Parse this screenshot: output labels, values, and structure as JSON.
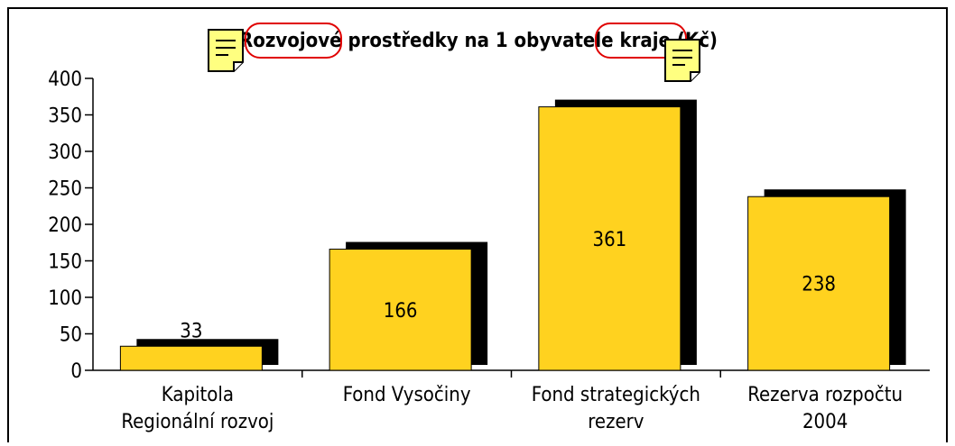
{
  "chart_data": {
    "type": "bar",
    "title": "Rozvojové prostředky na 1 obyvatele kraje (Kč)",
    "categories": [
      [
        "Kapitola",
        "Regionální rozvoj"
      ],
      [
        "Fond Vysočiny"
      ],
      [
        "Fond strategických",
        "rezerv"
      ],
      [
        "Rezerva rozpočtu",
        "2004"
      ]
    ],
    "values": [
      33,
      166,
      361,
      238
    ],
    "color": "#ffd21f",
    "ylim": [
      0,
      400
    ],
    "yticks": [
      0,
      50,
      100,
      150,
      200,
      250,
      300,
      350,
      400
    ]
  }
}
